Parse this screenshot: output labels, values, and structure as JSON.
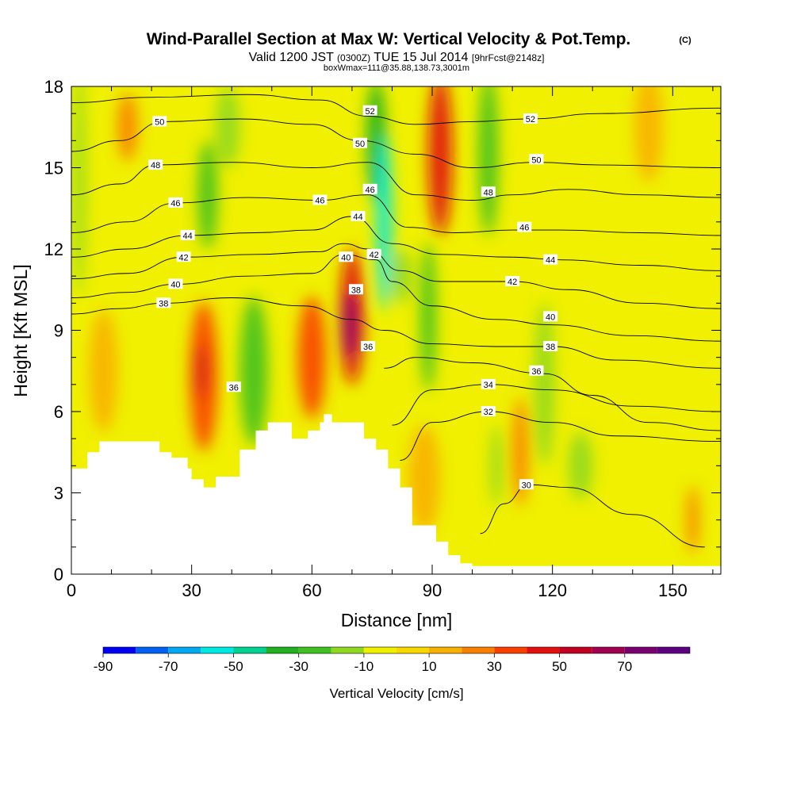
{
  "chart_data": {
    "type": "heatmap",
    "title": "Wind-Parallel Section at Max W: Vertical Velocity & Pot.Temp.",
    "title_mark": "(C)",
    "subtitle": {
      "valid_label": "Valid 1200 JST",
      "utc_time": "(0300Z)",
      "date": "TUE 15 Jul 2014",
      "forecast": "[9hrFcst@2148z]"
    },
    "subtitle2": "boxWmax=111@35.88,138.73,3001m",
    "xlabel": "Distance [nm]",
    "ylabel": "Height [Kft MSL]",
    "xlim": [
      0,
      162
    ],
    "ylim": [
      0,
      18
    ],
    "xticks": [
      0,
      30,
      60,
      90,
      120,
      150
    ],
    "yticks": [
      0,
      3,
      6,
      9,
      12,
      15,
      18
    ],
    "colorbar": {
      "label": "Vertical Velocity [cm/s]",
      "tick_labels": [
        "-90",
        "-70",
        "-50",
        "-30",
        "-10",
        "10",
        "30",
        "50",
        "70"
      ],
      "colors": [
        "#0000f0",
        "#0060f0",
        "#00a8f0",
        "#00e8e0",
        "#00d090",
        "#20b020",
        "#40c020",
        "#90d820",
        "#f0f000",
        "#f8d800",
        "#f8b000",
        "#f88000",
        "#f84000",
        "#e01010",
        "#c00020",
        "#a00050",
        "#7a0070",
        "#5a0080"
      ]
    },
    "terrain": {
      "x": [
        0,
        4,
        4,
        7,
        7,
        22,
        22,
        25,
        25,
        29,
        29,
        30,
        30,
        33,
        33,
        36,
        36,
        42,
        42,
        46,
        46,
        49,
        49,
        55,
        55,
        59,
        59,
        62,
        62,
        63,
        63,
        65,
        65,
        73,
        73,
        76,
        76,
        79,
        79,
        82,
        82,
        85,
        85,
        91,
        91,
        94,
        94,
        97,
        97,
        100,
        100,
        162
      ],
      "height": [
        3.9,
        3.9,
        4.5,
        4.5,
        4.9,
        4.9,
        4.5,
        4.5,
        4.3,
        4.3,
        3.9,
        3.9,
        3.5,
        3.5,
        3.2,
        3.2,
        3.6,
        3.6,
        4.6,
        4.6,
        5.3,
        5.3,
        5.6,
        5.6,
        5.0,
        5.0,
        5.3,
        5.3,
        5.6,
        5.6,
        5.9,
        5.9,
        5.6,
        5.6,
        5.0,
        5.0,
        4.6,
        4.6,
        3.9,
        3.9,
        3.2,
        3.2,
        1.8,
        1.8,
        1.2,
        1.2,
        0.7,
        0.7,
        0.4,
        0.4,
        0.3,
        0.3
      ]
    },
    "vertical_velocity_cells": [
      {
        "x": 2,
        "y": 14.5,
        "w": 3,
        "h": 8.5,
        "value": -20
      },
      {
        "x": 14,
        "y": 16.5,
        "w": 5,
        "h": 2.5,
        "value": 20
      },
      {
        "x": 34,
        "y": 14,
        "w": 5,
        "h": 4.0,
        "value": -30
      },
      {
        "x": 39,
        "y": 16.5,
        "w": 6,
        "h": 3.0,
        "value": -20
      },
      {
        "x": 33,
        "y": 7.3,
        "w": 7,
        "h": 5.5,
        "value": 35
      },
      {
        "x": 32.5,
        "y": 7.5,
        "w": 2,
        "h": 2.0,
        "value": 50
      },
      {
        "x": 45.5,
        "y": 7.5,
        "w": 7,
        "h": 5.5,
        "value": -25
      },
      {
        "x": 60,
        "y": 8.0,
        "w": 7,
        "h": 4.5,
        "value": 35
      },
      {
        "x": 70,
        "y": 9.5,
        "w": 6,
        "h": 5.0,
        "value": 40
      },
      {
        "x": 69.5,
        "y": 9.2,
        "w": 3,
        "h": 2.5,
        "value": 75
      },
      {
        "x": 76,
        "y": 16.0,
        "w": 5,
        "h": 4.5,
        "value": -35
      },
      {
        "x": 78,
        "y": 13.0,
        "w": 4,
        "h": 6.5,
        "value": -55
      },
      {
        "x": 82.5,
        "y": 11.0,
        "w": 5,
        "h": 2.0,
        "value": -20
      },
      {
        "x": 89,
        "y": 9.5,
        "w": 4,
        "h": 5.5,
        "value": -25
      },
      {
        "x": 92,
        "y": 15.5,
        "w": 6,
        "h": 6.0,
        "value": 45
      },
      {
        "x": 104,
        "y": 15.5,
        "w": 5,
        "h": 6.0,
        "value": -25
      },
      {
        "x": 106,
        "y": 4.0,
        "w": 3,
        "h": 3.0,
        "value": -15
      },
      {
        "x": 112,
        "y": 4.5,
        "w": 4,
        "h": 4.0,
        "value": 25
      },
      {
        "x": 118,
        "y": 7.0,
        "w": 5,
        "h": 6.0,
        "value": -20
      },
      {
        "x": 127,
        "y": 4.0,
        "w": 6,
        "h": 2.5,
        "value": -20
      },
      {
        "x": 144,
        "y": 16.5,
        "w": 7,
        "h": 4.0,
        "value": 15
      },
      {
        "x": 155,
        "y": 2.0,
        "w": 3,
        "h": 2.5,
        "value": 20
      },
      {
        "x": 8,
        "y": 7.5,
        "w": 7,
        "h": 4.5,
        "value": 15
      },
      {
        "x": 88,
        "y": 3.5,
        "w": 8,
        "h": 4.0,
        "value": 15
      }
    ],
    "theta_contours": [
      {
        "label": "30",
        "label_x": 114,
        "points": [
          [
            102,
            1.5
          ],
          [
            108,
            2.6
          ],
          [
            114,
            3.3
          ],
          [
            124,
            3.2
          ],
          [
            140,
            2.2
          ],
          [
            158,
            1.0
          ]
        ]
      },
      {
        "label": "32",
        "label_x": 104,
        "points": [
          [
            82,
            4.2
          ],
          [
            90,
            5.6
          ],
          [
            104,
            6.0
          ],
          [
            120,
            5.6
          ],
          [
            136,
            5.1
          ],
          [
            162,
            4.9
          ]
        ]
      },
      {
        "label": "34",
        "label_x": 104,
        "points": [
          [
            80,
            5.5
          ],
          [
            90,
            6.8
          ],
          [
            104,
            7.0
          ],
          [
            120,
            6.8
          ],
          [
            140,
            6.2
          ],
          [
            162,
            6.0
          ]
        ]
      },
      {
        "label": "36",
        "label_x": 118,
        "points": [
          [
            78,
            7.6
          ],
          [
            86,
            8.0
          ],
          [
            100,
            7.8
          ],
          [
            118,
            7.4
          ],
          [
            130,
            6.6
          ],
          [
            144,
            5.6
          ],
          [
            162,
            5.3
          ]
        ]
      },
      {
        "label": "38",
        "label_x": 23,
        "points": [
          [
            0,
            9.6
          ],
          [
            12,
            9.8
          ],
          [
            23,
            10.0
          ],
          [
            40,
            10.2
          ],
          [
            58,
            9.9
          ],
          [
            70,
            9.4
          ],
          [
            78,
            9.0
          ],
          [
            90,
            8.5
          ],
          [
            106,
            8.4
          ],
          [
            120,
            8.4
          ],
          [
            136,
            7.9
          ],
          [
            162,
            7.6
          ]
        ]
      },
      {
        "label": "40",
        "label_x": 26,
        "points": [
          [
            0,
            10.2
          ],
          [
            14,
            10.4
          ],
          [
            26,
            10.7
          ],
          [
            44,
            11.0
          ],
          [
            60,
            11.1
          ],
          [
            68,
            11.8
          ],
          [
            76,
            11.6
          ],
          [
            80,
            10.8
          ],
          [
            90,
            9.9
          ],
          [
            106,
            9.4
          ],
          [
            120,
            9.2
          ],
          [
            140,
            8.8
          ],
          [
            162,
            8.6
          ]
        ]
      },
      {
        "label": "42",
        "label_x": 28,
        "points": [
          [
            0,
            10.9
          ],
          [
            14,
            11.1
          ],
          [
            28,
            11.7
          ],
          [
            46,
            11.8
          ],
          [
            62,
            11.9
          ],
          [
            68,
            12.2
          ],
          [
            74,
            12.0
          ],
          [
            82,
            11.2
          ],
          [
            92,
            10.8
          ],
          [
            110,
            10.8
          ],
          [
            124,
            10.5
          ],
          [
            142,
            10.0
          ],
          [
            162,
            9.8
          ]
        ]
      },
      {
        "label": "44",
        "label_x": 29,
        "points": [
          [
            0,
            11.7
          ],
          [
            14,
            12.0
          ],
          [
            29,
            12.5
          ],
          [
            46,
            12.6
          ],
          [
            60,
            12.7
          ],
          [
            70,
            13.2
          ],
          [
            80,
            12.2
          ],
          [
            92,
            11.8
          ],
          [
            110,
            11.7
          ],
          [
            122,
            11.6
          ],
          [
            142,
            11.4
          ],
          [
            162,
            11.2
          ]
        ]
      },
      {
        "label": "46",
        "label_x": 26,
        "points": [
          [
            0,
            12.6
          ],
          [
            14,
            13.0
          ],
          [
            26,
            13.7
          ],
          [
            44,
            13.9
          ],
          [
            62,
            13.8
          ],
          [
            74,
            14.0
          ],
          [
            84,
            12.8
          ],
          [
            96,
            12.6
          ],
          [
            110,
            12.7
          ],
          [
            122,
            12.7
          ],
          [
            142,
            12.6
          ],
          [
            162,
            12.5
          ]
        ]
      },
      {
        "label": "48",
        "label_x": 21,
        "points": [
          [
            0,
            14.0
          ],
          [
            12,
            14.4
          ],
          [
            21,
            15.1
          ],
          [
            40,
            15.2
          ],
          [
            60,
            15.0
          ],
          [
            74,
            15.2
          ],
          [
            86,
            14.0
          ],
          [
            100,
            13.8
          ],
          [
            110,
            14.0
          ],
          [
            124,
            14.2
          ],
          [
            142,
            14.0
          ],
          [
            162,
            13.9
          ]
        ]
      },
      {
        "label": "50",
        "label_x": 23,
        "points": [
          [
            0,
            15.6
          ],
          [
            12,
            16.0
          ],
          [
            23,
            16.7
          ],
          [
            42,
            16.8
          ],
          [
            60,
            16.6
          ],
          [
            72,
            16.0
          ],
          [
            86,
            15.5
          ],
          [
            100,
            15.0
          ],
          [
            116,
            15.2
          ],
          [
            132,
            15.1
          ],
          [
            162,
            15.0
          ]
        ]
      },
      {
        "label": "52",
        "label_x": 114,
        "points": [
          [
            0,
            17.4
          ],
          [
            20,
            17.6
          ],
          [
            44,
            17.7
          ],
          [
            62,
            17.5
          ],
          [
            74,
            16.9
          ],
          [
            86,
            16.6
          ],
          [
            100,
            16.7
          ],
          [
            114,
            16.8
          ],
          [
            132,
            17.0
          ],
          [
            162,
            17.2
          ]
        ]
      }
    ],
    "inline_labels": [
      {
        "text": "50",
        "x": 22,
        "y": 16.7
      },
      {
        "text": "48",
        "x": 21,
        "y": 15.1
      },
      {
        "text": "46",
        "x": 26,
        "y": 13.7
      },
      {
        "text": "44",
        "x": 29,
        "y": 12.5
      },
      {
        "text": "42",
        "x": 28,
        "y": 11.7
      },
      {
        "text": "40",
        "x": 26,
        "y": 10.7
      },
      {
        "text": "38",
        "x": 23,
        "y": 10.0
      },
      {
        "text": "36",
        "x": 40.5,
        "y": 6.9
      },
      {
        "text": "46",
        "x": 62,
        "y": 13.8
      },
      {
        "text": "44",
        "x": 71.5,
        "y": 13.2
      },
      {
        "text": "40",
        "x": 68.5,
        "y": 11.7
      },
      {
        "text": "42",
        "x": 75.5,
        "y": 11.8
      },
      {
        "text": "38",
        "x": 71,
        "y": 10.5
      },
      {
        "text": "36",
        "x": 74,
        "y": 8.4
      },
      {
        "text": "52",
        "x": 74.5,
        "y": 17.1
      },
      {
        "text": "50",
        "x": 72,
        "y": 15.9
      },
      {
        "text": "46",
        "x": 74.5,
        "y": 14.2
      },
      {
        "text": "48",
        "x": 104,
        "y": 14.1
      },
      {
        "text": "52",
        "x": 114.5,
        "y": 16.8
      },
      {
        "text": "50",
        "x": 116,
        "y": 15.3
      },
      {
        "text": "46",
        "x": 113,
        "y": 12.8
      },
      {
        "text": "44",
        "x": 119.5,
        "y": 11.6
      },
      {
        "text": "42",
        "x": 110,
        "y": 10.8
      },
      {
        "text": "40",
        "x": 119.5,
        "y": 9.5
      },
      {
        "text": "38",
        "x": 119.5,
        "y": 8.4
      },
      {
        "text": "36",
        "x": 116,
        "y": 7.5
      },
      {
        "text": "34",
        "x": 104,
        "y": 7.0
      },
      {
        "text": "32",
        "x": 104,
        "y": 6.0
      },
      {
        "text": "30",
        "x": 113.5,
        "y": 3.3
      }
    ]
  }
}
